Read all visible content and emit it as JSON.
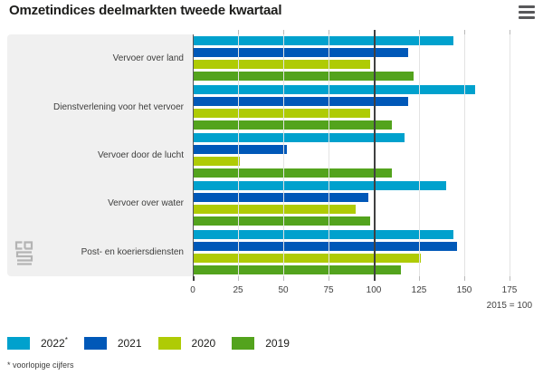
{
  "header": {
    "title": "Omzetindices deelmarkten tweede kwartaal",
    "menu_icon": "hamburger-menu-icon"
  },
  "chart_data": {
    "type": "bar",
    "orientation": "horizontal",
    "title": "Omzetindices deelmarkten tweede kwartaal",
    "categories": [
      "Vervoer over land",
      "Dienstverlening voor het vervoer",
      "Vervoer door de lucht",
      "Vervoer over water",
      "Post- en koeriersdiensten"
    ],
    "series": [
      {
        "name": "2022*",
        "color": "#00a1cd",
        "values": [
          144,
          156,
          117,
          140,
          144
        ]
      },
      {
        "name": "2021",
        "color": "#0058b8",
        "values": [
          119,
          119,
          52,
          97,
          146
        ]
      },
      {
        "name": "2020",
        "color": "#afcb05",
        "values": [
          98,
          98,
          26,
          90,
          126
        ]
      },
      {
        "name": "2019",
        "color": "#53a31d",
        "values": [
          122,
          110,
          110,
          98,
          115
        ]
      }
    ],
    "xlim": [
      0,
      175
    ],
    "xticks": [
      0,
      25,
      50,
      75,
      100,
      125,
      150,
      175
    ],
    "reference_line": 100,
    "axis_note": "2015 = 100",
    "grid": true,
    "legend_position": "bottom"
  },
  "legend": {
    "items": [
      {
        "label": "2022",
        "sup": "*",
        "color": "#00a1cd"
      },
      {
        "label": "2021",
        "sup": "",
        "color": "#0058b8"
      },
      {
        "label": "2020",
        "sup": "",
        "color": "#afcb05"
      },
      {
        "label": "2019",
        "sup": "",
        "color": "#53a31d"
      }
    ]
  },
  "footnote": "* voorlopige cijfers",
  "branding": {
    "logo": "cbs-logo"
  }
}
